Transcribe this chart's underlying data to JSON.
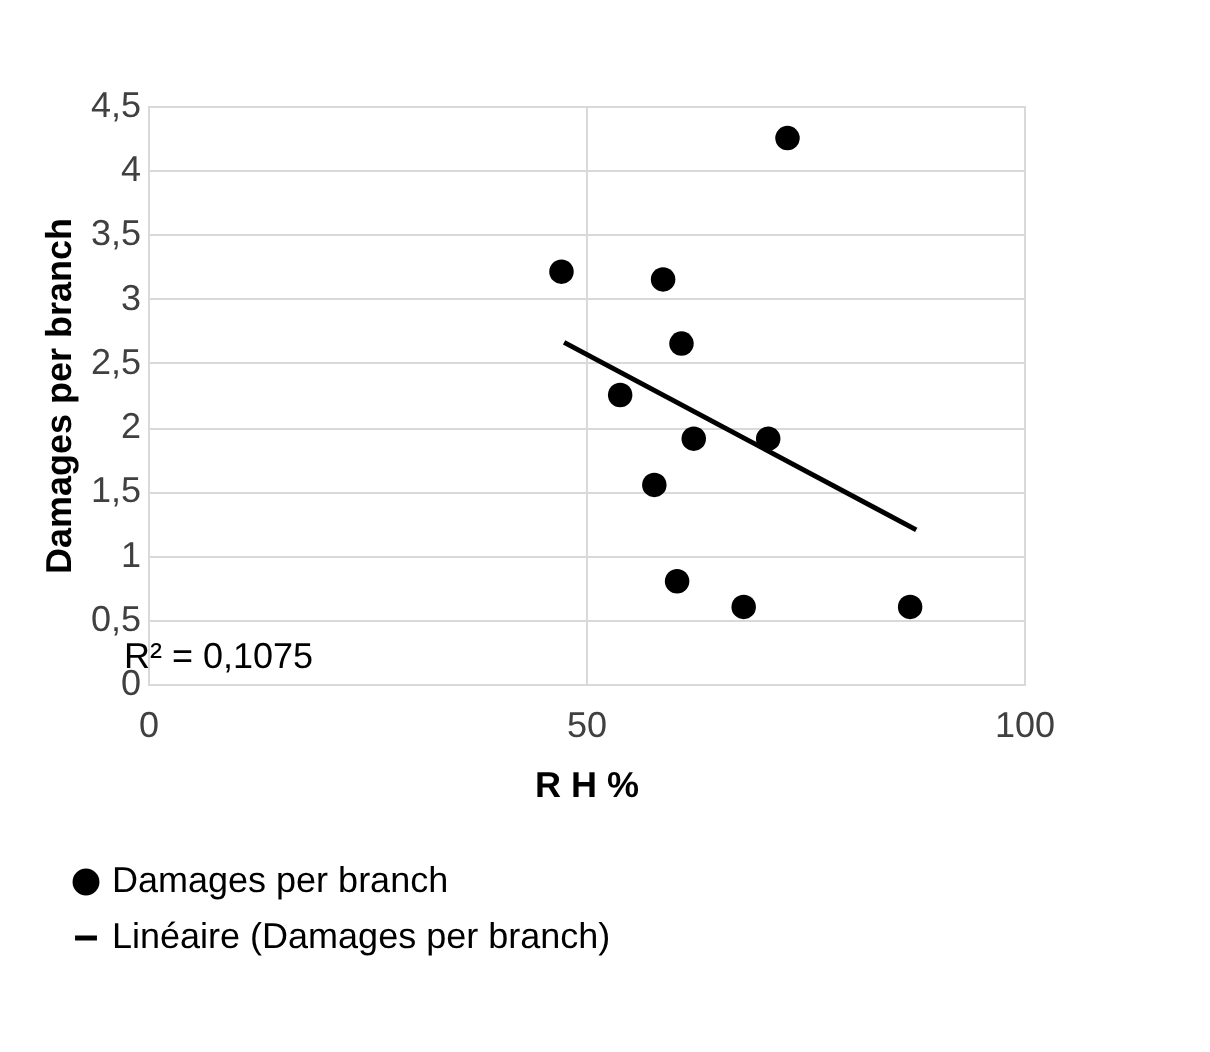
{
  "chart_data": {
    "type": "scatter",
    "xlabel": "R H %",
    "ylabel": "Damages per branch",
    "xlim": [
      0,
      100
    ],
    "xticks": [
      0,
      50,
      100
    ],
    "ylim": [
      0,
      4.5
    ],
    "yticks": [
      0,
      {
        "value": 0.5,
        "label": "0,5"
      },
      1,
      {
        "value": 1.5,
        "label": "1,5"
      },
      2,
      {
        "value": 2.5,
        "label": "2,5"
      },
      3,
      {
        "value": 3.5,
        "label": "3,5"
      },
      4,
      {
        "value": 4.5,
        "label": "4,5"
      }
    ],
    "grid": true,
    "legend": "bottom",
    "marker": "circle",
    "annotations": [
      "R² = 0,1075"
    ],
    "series": [
      {
        "name": "Damages per branch",
        "color": "#000000",
        "x": [
          73.0,
          47.2,
          58.8,
          60.9,
          53.9,
          62.3,
          70.8,
          57.8,
          60.4,
          68.0,
          87.0
        ],
        "values": [
          4.25,
          3.21,
          3.15,
          2.65,
          2.25,
          1.91,
          1.91,
          1.55,
          0.8,
          0.6,
          0.6
        ]
      },
      {
        "name": "Linéaire (Damages per branch)",
        "type": "line",
        "color": "#000000",
        "line_style": "solid",
        "marker": "none",
        "x": [
          47.5,
          87.7
        ],
        "values": [
          2.66,
          1.2
        ]
      }
    ]
  }
}
